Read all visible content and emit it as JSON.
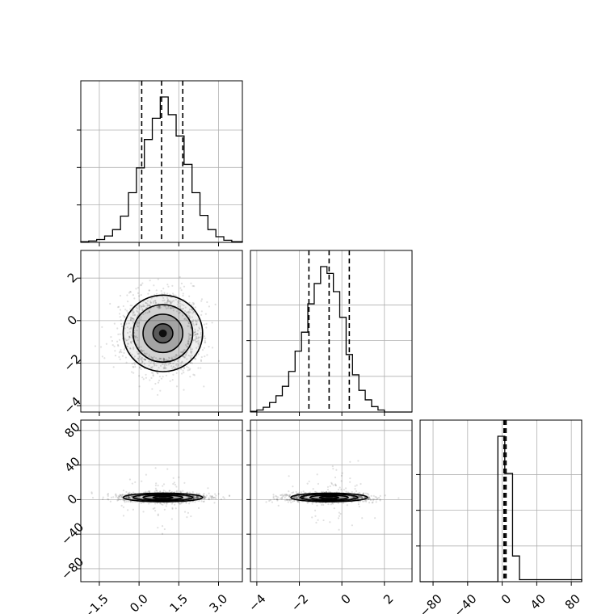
{
  "chart_data": {
    "type": "corner",
    "parameters": [
      {
        "ticks": [
          -1.5,
          0.0,
          1.5,
          3.0
        ],
        "tick_labels": [
          "−1.5",
          "0.0",
          "1.5",
          "3.0"
        ],
        "range": [
          -2.2,
          3.9
        ]
      },
      {
        "ticks": [
          -4,
          -2,
          0,
          2
        ],
        "tick_labels": [
          "−4",
          "−2",
          "0",
          "2"
        ],
        "range": [
          -4.3,
          3.3
        ]
      },
      {
        "ticks": [
          -80,
          -40,
          0,
          40,
          80
        ],
        "tick_labels": [
          "−80",
          "−40",
          "0",
          "40",
          "80"
        ],
        "range": [
          -95,
          92
        ]
      }
    ],
    "histograms": [
      {
        "param": 0,
        "edges": [
          -2.2,
          -1.9,
          -1.6,
          -1.3,
          -1.0,
          -0.7,
          -0.4,
          -0.1,
          0.2,
          0.5,
          0.8,
          1.1,
          1.4,
          1.7,
          2.0,
          2.3,
          2.6,
          2.9,
          3.2,
          3.5,
          3.9
        ],
        "counts": [
          1,
          2,
          4,
          9,
          18,
          37,
          70,
          105,
          145,
          175,
          205,
          180,
          150,
          110,
          70,
          38,
          18,
          8,
          3,
          1
        ],
        "quantiles": [
          0.1,
          0.85,
          1.65
        ]
      },
      {
        "param": 1,
        "edges": [
          -4.3,
          -4.0,
          -3.7,
          -3.4,
          -3.1,
          -2.8,
          -2.5,
          -2.2,
          -1.9,
          -1.6,
          -1.3,
          -1.0,
          -0.7,
          -0.4,
          -0.1,
          0.2,
          0.5,
          0.8,
          1.1,
          1.4,
          1.7,
          2.0,
          2.3,
          2.6,
          2.9,
          3.3
        ],
        "counts": [
          1,
          3,
          7,
          14,
          24,
          38,
          60,
          90,
          118,
          160,
          190,
          215,
          205,
          178,
          140,
          85,
          55,
          32,
          18,
          8,
          3,
          0,
          0,
          0,
          0
        ],
        "quantiles": [
          -1.55,
          -0.6,
          0.35
        ]
      },
      {
        "param": 2,
        "edges": [
          -95,
          -5,
          3,
          12,
          20,
          92
        ],
        "counts": [
          0,
          215,
          160,
          38,
          3
        ],
        "quantiles": [
          2,
          3,
          4.5
        ]
      }
    ],
    "pairs": [
      {
        "x": 0,
        "y": 1,
        "center": [
          0.9,
          -0.6
        ],
        "sd": [
          0.75,
          0.9
        ],
        "contour_levels_sigma": [
          0.5,
          1.0,
          1.5,
          2.0
        ]
      },
      {
        "x": 0,
        "y": 2,
        "center": [
          0.9,
          2.5
        ],
        "sd": [
          0.75,
          2.5
        ],
        "contour_levels_sigma": [
          0.5,
          1.0,
          1.5,
          2.0
        ]
      },
      {
        "x": 1,
        "y": 2,
        "center": [
          -0.6,
          2.5
        ],
        "sd": [
          0.9,
          2.5
        ],
        "contour_levels_sigma": [
          0.5,
          1.0,
          1.5,
          2.0
        ]
      }
    ],
    "grid": true
  }
}
